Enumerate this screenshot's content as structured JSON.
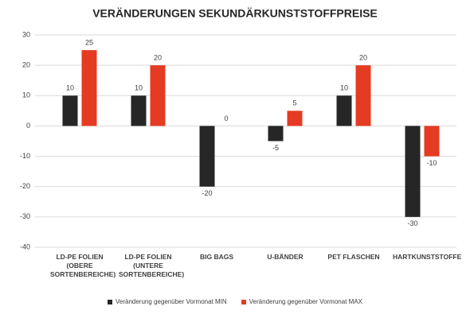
{
  "chart_data": {
    "type": "bar",
    "title": "VERÄNDERUNGEN SEKUNDÄRKUNSTSTOFFPREISE",
    "categories": [
      "LD-PE FOLIEN (OBERE SORTENBEREICHE)",
      "LD-PE FOLIEN (UNTERE SORTENBEREICHE)",
      "BIG BAGS",
      "U-BÄNDER",
      "PET FLASCHEN",
      "HARTKUNSTSTOFFE"
    ],
    "series": [
      {
        "name": "Veränderung gegenüber Vormonat MIN",
        "color": "#262626",
        "values": [
          10,
          10,
          -20,
          -5,
          10,
          -30
        ]
      },
      {
        "name": "Veränderung gegenüber Vormonat MAX",
        "color": "#e53b22",
        "values": [
          25,
          20,
          0,
          5,
          20,
          -10
        ]
      }
    ],
    "ylim": [
      -40,
      30
    ],
    "yticks": [
      -40,
      -30,
      -20,
      -10,
      0,
      10,
      20,
      30
    ],
    "grid": true,
    "legend": "bottom"
  }
}
